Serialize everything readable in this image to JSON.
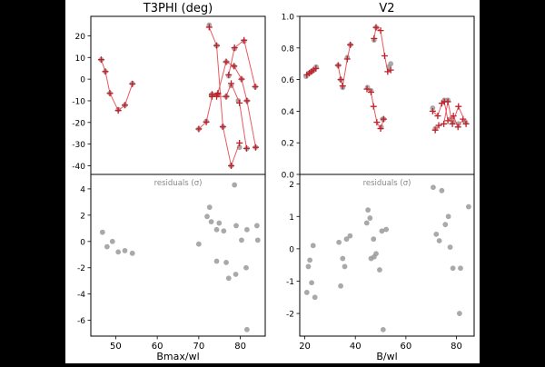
{
  "chart_data": [
    {
      "type": "scatter",
      "title": "T3PHI (deg)",
      "xlabel": "Bmax/wl",
      "xlim": [
        44,
        86
      ],
      "top": {
        "ylim": [
          -44,
          29
        ],
        "yticks": [
          20,
          10,
          0,
          -10,
          -20,
          -30,
          -40
        ],
        "segments": [
          [
            [
              46.5,
              9
            ],
            [
              47.5,
              3.5
            ],
            [
              48.6,
              -6.5
            ],
            [
              50.6,
              -14.5
            ],
            [
              52.2,
              -12
            ],
            [
              54.0,
              -2.2
            ]
          ],
          [
            [
              70.0,
              -23
            ],
            [
              71.8,
              -19.8
            ],
            [
              73.2,
              -8
            ],
            [
              74.6,
              -7
            ]
          ],
          [
            [
              72.5,
              24
            ],
            [
              74.3,
              15.5
            ],
            [
              75.8,
              -22
            ],
            [
              77.8,
              -40
            ],
            [
              79.8,
              -29.5
            ]
          ],
          [
            [
              73.2,
              -7
            ],
            [
              74.3,
              -8
            ],
            [
              76.6,
              -8
            ],
            [
              77.8,
              -2
            ],
            [
              79.8,
              -11
            ],
            [
              81.5,
              -32
            ]
          ],
          [
            [
              74.6,
              -6.5
            ],
            [
              76.6,
              8
            ],
            [
              78.5,
              6
            ],
            [
              80.3,
              0
            ],
            [
              81.6,
              -10
            ],
            [
              83.7,
              -31.5
            ]
          ],
          [
            [
              77.2,
              2
            ],
            [
              78.6,
              14.5
            ],
            [
              80.9,
              18
            ],
            [
              83.6,
              -3.5
            ]
          ]
        ],
        "data_points": [
          [
            46.5,
            9
          ],
          [
            47.5,
            3.5
          ],
          [
            48.6,
            -6.5
          ],
          [
            50.6,
            -14
          ],
          [
            52.2,
            -12
          ],
          [
            54.0,
            -2
          ],
          [
            70.0,
            -23
          ],
          [
            71.8,
            -19.5
          ],
          [
            73.0,
            -7.5
          ],
          [
            74.5,
            -7
          ],
          [
            72.5,
            25
          ],
          [
            74.3,
            15.5
          ],
          [
            75.8,
            -22
          ],
          [
            77.8,
            -40
          ],
          [
            79.8,
            -31.5
          ],
          [
            73.2,
            -7
          ],
          [
            76.6,
            -8
          ],
          [
            77.8,
            -3
          ],
          [
            79.5,
            -10
          ],
          [
            81.6,
            -32
          ],
          [
            76.6,
            8
          ],
          [
            78.5,
            6
          ],
          [
            80.3,
            0
          ],
          [
            81.6,
            -10
          ],
          [
            83.7,
            -31.5
          ],
          [
            77.2,
            1.5
          ],
          [
            78.6,
            14
          ],
          [
            80.9,
            17.5
          ],
          [
            83.6,
            -3.5
          ]
        ]
      },
      "bottom": {
        "annotation": "residuals (σ)",
        "ylim": [
          -7.2,
          5.1
        ],
        "yticks": [
          4,
          2,
          0,
          -2,
          -4,
          -6
        ],
        "points": [
          [
            46.8,
            0.7
          ],
          [
            47.9,
            -0.4
          ],
          [
            49.2,
            0
          ],
          [
            50.6,
            -0.8
          ],
          [
            52.2,
            -0.7
          ],
          [
            54.0,
            -0.9
          ],
          [
            70.0,
            -0.2
          ],
          [
            72.0,
            1.9
          ],
          [
            72.6,
            2.6
          ],
          [
            73.0,
            1.5
          ],
          [
            74.3,
            0.9
          ],
          [
            74.9,
            1.4
          ],
          [
            74.3,
            -1.5
          ],
          [
            76.0,
            0.8
          ],
          [
            76.6,
            -1.6
          ],
          [
            77.2,
            -2.8
          ],
          [
            78.6,
            4.3
          ],
          [
            79.0,
            1.2
          ],
          [
            78.9,
            -2.5
          ],
          [
            80.3,
            0.1
          ],
          [
            81.4,
            -2
          ],
          [
            81.6,
            -6.7
          ],
          [
            81.6,
            0.9
          ],
          [
            84.0,
            1.2
          ],
          [
            84.2,
            0.1
          ]
        ]
      }
    },
    {
      "type": "scatter",
      "title": "V2",
      "xlabel": "B/wl",
      "xlim": [
        18,
        87
      ],
      "top": {
        "ylim": [
          0,
          1
        ],
        "yticks": [
          1.0,
          0.8,
          0.6,
          0.4,
          0.2,
          0.0
        ],
        "ytick_labels": [
          "1.0",
          "0.8",
          "0.6",
          "0.4",
          "0.2",
          "0.0"
        ],
        "segments": [
          [
            [
              20.8,
              0.63
            ],
            [
              21.8,
              0.64
            ],
            [
              22.6,
              0.65
            ],
            [
              23.4,
              0.66
            ],
            [
              24.4,
              0.67
            ]
          ],
          [
            [
              33.2,
              0.69
            ],
            [
              34.2,
              0.6
            ],
            [
              35.0,
              0.56
            ],
            [
              36.8,
              0.73
            ],
            [
              38.0,
              0.82
            ]
          ],
          [
            [
              44.6,
              0.54
            ],
            [
              46.2,
              0.52
            ],
            [
              47.2,
              0.43
            ],
            [
              48.5,
              0.33
            ],
            [
              50.0,
              0.29
            ],
            [
              51.2,
              0.35
            ]
          ],
          [
            [
              47.4,
              0.86
            ],
            [
              48.2,
              0.93
            ],
            [
              50.0,
              0.91
            ],
            [
              51.6,
              0.75
            ],
            [
              52.8,
              0.65
            ],
            [
              54.0,
              0.66
            ]
          ],
          [
            [
              70.6,
              0.4
            ],
            [
              72.6,
              0.37
            ],
            [
              74.2,
              0.45
            ],
            [
              75.2,
              0.46
            ],
            [
              76.6,
              0.34
            ],
            [
              78.8,
              0.37
            ],
            [
              80.6,
              0.3
            ],
            [
              82.6,
              0.35
            ]
          ],
          [
            [
              71.6,
              0.28
            ],
            [
              73.0,
              0.31
            ],
            [
              75.0,
              0.32
            ],
            [
              76.6,
              0.46
            ],
            [
              78.4,
              0.32
            ],
            [
              80.8,
              0.43
            ],
            [
              83.8,
              0.32
            ]
          ]
        ],
        "data_points": [
          [
            20.5,
            0.62
          ],
          [
            21.5,
            0.64
          ],
          [
            22.5,
            0.65
          ],
          [
            23.5,
            0.66
          ],
          [
            24.5,
            0.68
          ],
          [
            33.2,
            0.69
          ],
          [
            34.2,
            0.6
          ],
          [
            35.0,
            0.55
          ],
          [
            36.8,
            0.74
          ],
          [
            38.0,
            0.82
          ],
          [
            44.8,
            0.55
          ],
          [
            46.2,
            0.53
          ],
          [
            47.4,
            0.85
          ],
          [
            48.2,
            0.93
          ],
          [
            50.2,
            0.3
          ],
          [
            50.8,
            0.35
          ],
          [
            51.2,
            0.35
          ],
          [
            53.2,
            0.68
          ],
          [
            54.0,
            0.7
          ],
          [
            70.6,
            0.42
          ],
          [
            71.6,
            0.29
          ],
          [
            75.2,
            0.47
          ],
          [
            76.6,
            0.47
          ],
          [
            77.6,
            0.35
          ],
          [
            78.6,
            0.33
          ],
          [
            80.8,
            0.32
          ],
          [
            83.6,
            0.33
          ]
        ]
      },
      "bottom": {
        "annotation": "residuals (σ)",
        "ylim": [
          -2.7,
          2.3
        ],
        "yticks": [
          2,
          1,
          0,
          -1,
          -2
        ],
        "points": [
          [
            20.8,
            -1.35
          ],
          [
            21.4,
            -0.55
          ],
          [
            22.0,
            -0.35
          ],
          [
            22.7,
            -1.05
          ],
          [
            23.3,
            0.1
          ],
          [
            24.0,
            -1.5
          ],
          [
            33.5,
            0.2
          ],
          [
            34.2,
            -1.15
          ],
          [
            35.0,
            -0.3
          ],
          [
            35.8,
            -0.55
          ],
          [
            36.5,
            0.3
          ],
          [
            37.9,
            0.4
          ],
          [
            44.5,
            0.8
          ],
          [
            45.0,
            1.2
          ],
          [
            45.8,
            0.95
          ],
          [
            46.2,
            -0.3
          ],
          [
            47.2,
            0.3
          ],
          [
            47.4,
            -0.25
          ],
          [
            48.2,
            -0.15
          ],
          [
            49.6,
            -0.65
          ],
          [
            50.5,
            0.55
          ],
          [
            51.0,
            -2.5
          ],
          [
            52.2,
            0.6
          ],
          [
            70.8,
            1.9
          ],
          [
            72.0,
            0.45
          ],
          [
            73.2,
            0.25
          ],
          [
            74.2,
            1.8
          ],
          [
            75.6,
            0.75
          ],
          [
            76.8,
            1.0
          ],
          [
            77.5,
            0.05
          ],
          [
            78.6,
            -0.6
          ],
          [
            81.2,
            -2.0
          ],
          [
            81.6,
            -0.6
          ],
          [
            84.8,
            1.3
          ]
        ]
      }
    }
  ]
}
